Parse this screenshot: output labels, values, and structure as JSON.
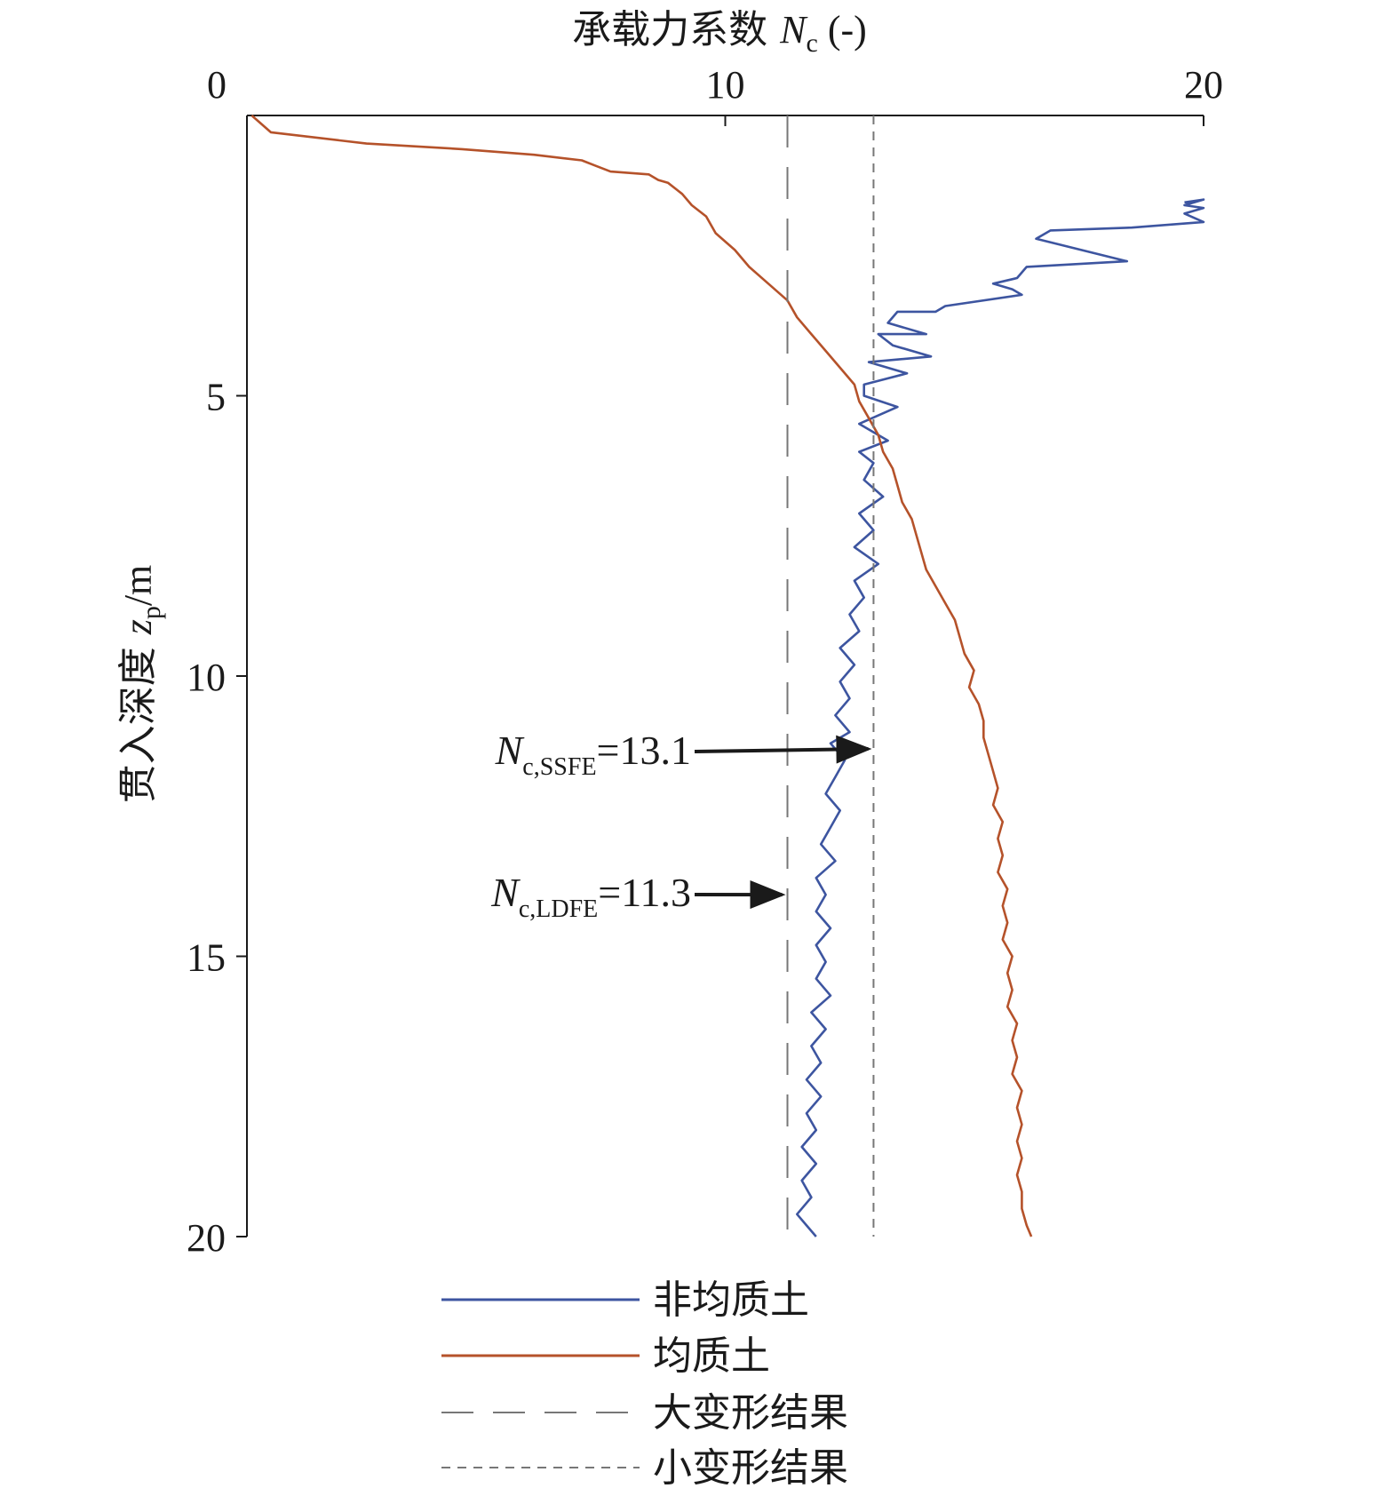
{
  "chart_data": {
    "type": "line",
    "xlabel": {
      "main": "承载力系数 ",
      "var": "N",
      "sub": "c",
      "unit": " (-)"
    },
    "ylabel": {
      "main": "贯入深度 ",
      "var": "z",
      "sub": "p",
      "unit": "/m"
    },
    "xlim": [
      0,
      20
    ],
    "ylim": [
      0,
      20
    ],
    "y_inverted": true,
    "x_axis_position": "top",
    "x_ticks": [
      0,
      10,
      20
    ],
    "y_ticks": [
      5,
      10,
      15,
      20
    ],
    "x_tick_labels": [
      "0",
      "10",
      "20"
    ],
    "y_tick_labels": [
      "5",
      "10",
      "15",
      "20"
    ],
    "grid": false,
    "legend_position": "bottom",
    "series": [
      {
        "name": "非均质土",
        "color": "#3d55a0",
        "style": "solid",
        "points": [
          [
            19.6,
            1.55
          ],
          [
            20.0,
            1.5
          ],
          [
            19.6,
            1.6
          ],
          [
            20.0,
            1.65
          ],
          [
            19.6,
            1.75
          ],
          [
            20.0,
            1.9
          ],
          [
            18.5,
            2.0
          ],
          [
            16.8,
            2.05
          ],
          [
            16.5,
            2.2
          ],
          [
            18.4,
            2.6
          ],
          [
            16.3,
            2.7
          ],
          [
            16.1,
            2.9
          ],
          [
            15.6,
            3.0
          ],
          [
            16.0,
            3.1
          ],
          [
            16.2,
            3.2
          ],
          [
            14.6,
            3.4
          ],
          [
            14.4,
            3.5
          ],
          [
            13.6,
            3.5
          ],
          [
            13.4,
            3.7
          ],
          [
            14.2,
            3.9
          ],
          [
            13.2,
            3.9
          ],
          [
            13.5,
            4.1
          ],
          [
            14.3,
            4.3
          ],
          [
            13.0,
            4.4
          ],
          [
            13.8,
            4.6
          ],
          [
            12.9,
            4.8
          ],
          [
            12.9,
            5.0
          ],
          [
            13.6,
            5.2
          ],
          [
            12.8,
            5.5
          ],
          [
            13.4,
            5.8
          ],
          [
            12.8,
            6.0
          ],
          [
            13.1,
            6.2
          ],
          [
            12.9,
            6.5
          ],
          [
            13.3,
            6.8
          ],
          [
            12.8,
            7.1
          ],
          [
            13.1,
            7.4
          ],
          [
            12.7,
            7.7
          ],
          [
            13.2,
            8.0
          ],
          [
            12.7,
            8.3
          ],
          [
            12.9,
            8.6
          ],
          [
            12.6,
            8.9
          ],
          [
            12.8,
            9.2
          ],
          [
            12.4,
            9.5
          ],
          [
            12.7,
            9.8
          ],
          [
            12.4,
            10.1
          ],
          [
            12.6,
            10.4
          ],
          [
            12.3,
            10.7
          ],
          [
            12.6,
            11.0
          ],
          [
            12.2,
            11.2
          ],
          [
            12.5,
            11.5
          ],
          [
            12.3,
            11.8
          ],
          [
            12.1,
            12.1
          ],
          [
            12.4,
            12.4
          ],
          [
            12.2,
            12.7
          ],
          [
            12.0,
            13.0
          ],
          [
            12.3,
            13.3
          ],
          [
            11.9,
            13.6
          ],
          [
            12.1,
            13.9
          ],
          [
            11.9,
            14.2
          ],
          [
            12.2,
            14.5
          ],
          [
            11.9,
            14.8
          ],
          [
            12.1,
            15.1
          ],
          [
            11.9,
            15.4
          ],
          [
            12.2,
            15.7
          ],
          [
            11.8,
            16.0
          ],
          [
            12.1,
            16.3
          ],
          [
            11.8,
            16.6
          ],
          [
            12.0,
            16.9
          ],
          [
            11.7,
            17.2
          ],
          [
            12.0,
            17.5
          ],
          [
            11.7,
            17.8
          ],
          [
            11.9,
            18.1
          ],
          [
            11.6,
            18.4
          ],
          [
            11.9,
            18.7
          ],
          [
            11.6,
            19.0
          ],
          [
            11.8,
            19.3
          ],
          [
            11.5,
            19.6
          ],
          [
            11.7,
            19.8
          ],
          [
            11.9,
            20.0
          ]
        ]
      },
      {
        "name": "均质土",
        "color": "#b5522a",
        "style": "solid",
        "points": [
          [
            0.1,
            0.0
          ],
          [
            0.5,
            0.3
          ],
          [
            2.5,
            0.5
          ],
          [
            4.5,
            0.6
          ],
          [
            6.0,
            0.7
          ],
          [
            7.0,
            0.8
          ],
          [
            7.3,
            0.9
          ],
          [
            7.6,
            1.0
          ],
          [
            8.4,
            1.05
          ],
          [
            8.6,
            1.15
          ],
          [
            8.8,
            1.2
          ],
          [
            9.1,
            1.4
          ],
          [
            9.3,
            1.6
          ],
          [
            9.6,
            1.8
          ],
          [
            9.8,
            2.1
          ],
          [
            10.2,
            2.4
          ],
          [
            10.5,
            2.7
          ],
          [
            10.9,
            3.0
          ],
          [
            11.3,
            3.3
          ],
          [
            11.5,
            3.6
          ],
          [
            11.8,
            3.9
          ],
          [
            12.1,
            4.2
          ],
          [
            12.4,
            4.5
          ],
          [
            12.7,
            4.8
          ],
          [
            12.8,
            5.1
          ],
          [
            13.0,
            5.4
          ],
          [
            13.2,
            5.7
          ],
          [
            13.3,
            6.0
          ],
          [
            13.5,
            6.3
          ],
          [
            13.6,
            6.6
          ],
          [
            13.7,
            6.9
          ],
          [
            13.9,
            7.2
          ],
          [
            14.0,
            7.5
          ],
          [
            14.1,
            7.8
          ],
          [
            14.2,
            8.1
          ],
          [
            14.4,
            8.4
          ],
          [
            14.6,
            8.7
          ],
          [
            14.8,
            9.0
          ],
          [
            14.9,
            9.3
          ],
          [
            15.0,
            9.6
          ],
          [
            15.2,
            9.9
          ],
          [
            15.1,
            10.2
          ],
          [
            15.3,
            10.5
          ],
          [
            15.4,
            10.8
          ],
          [
            15.4,
            11.1
          ],
          [
            15.5,
            11.4
          ],
          [
            15.6,
            11.7
          ],
          [
            15.7,
            12.0
          ],
          [
            15.6,
            12.3
          ],
          [
            15.8,
            12.6
          ],
          [
            15.7,
            12.9
          ],
          [
            15.8,
            13.2
          ],
          [
            15.7,
            13.5
          ],
          [
            15.9,
            13.8
          ],
          [
            15.8,
            14.1
          ],
          [
            15.9,
            14.4
          ],
          [
            15.8,
            14.7
          ],
          [
            16.0,
            15.0
          ],
          [
            15.9,
            15.3
          ],
          [
            16.0,
            15.6
          ],
          [
            15.9,
            15.9
          ],
          [
            16.1,
            16.2
          ],
          [
            16.0,
            16.5
          ],
          [
            16.1,
            16.8
          ],
          [
            16.0,
            17.1
          ],
          [
            16.2,
            17.4
          ],
          [
            16.1,
            17.7
          ],
          [
            16.2,
            18.0
          ],
          [
            16.1,
            18.3
          ],
          [
            16.2,
            18.6
          ],
          [
            16.1,
            18.9
          ],
          [
            16.2,
            19.2
          ],
          [
            16.2,
            19.5
          ],
          [
            16.3,
            19.8
          ],
          [
            16.4,
            20.0
          ]
        ]
      },
      {
        "name": "大变形结果",
        "color": "#777777",
        "style": "long-dash",
        "x": 11.3
      },
      {
        "name": "小变形结果",
        "color": "#777777",
        "style": "short-dash",
        "x": 13.1
      }
    ],
    "annotations": [
      {
        "var": "N",
        "sub": "c,SSFE",
        "value": "=13.1",
        "target": [
          13.1,
          11.3
        ]
      },
      {
        "var": "N",
        "sub": "c,LDFE",
        "value": "=11.3",
        "target": [
          11.3,
          13.9
        ]
      }
    ]
  }
}
